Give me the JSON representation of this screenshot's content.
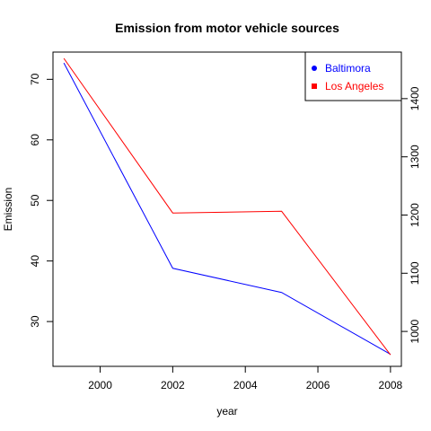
{
  "chart_data": {
    "type": "line",
    "title": "Emission from motor vehicle sources",
    "xlabel": "year",
    "ylabel": "Emission",
    "x": [
      1999,
      2002,
      2005,
      2008
    ],
    "xlim": [
      1998.7,
      2008.3
    ],
    "x_ticks": [
      2000,
      2002,
      2004,
      2006,
      2008
    ],
    "y_left": {
      "lim": [
        22.6,
        74.5
      ],
      "ticks": [
        30,
        40,
        50,
        60,
        70
      ]
    },
    "y_right": {
      "lim": [
        940,
        1480
      ],
      "ticks": [
        1000,
        1100,
        1200,
        1300,
        1400
      ]
    },
    "series": [
      {
        "name": "Baltimora",
        "axis": "left",
        "color": "#0000ff",
        "marker": "circle",
        "values": [
          72.7,
          38.8,
          34.8,
          24.6
        ]
      },
      {
        "name": "Los Angeles",
        "axis": "right",
        "color": "#ff0000",
        "marker": "square",
        "values": [
          1469.2,
          1203.5,
          1206.5,
          959.7
        ]
      }
    ],
    "legend_position": "top-right",
    "grid": false
  }
}
